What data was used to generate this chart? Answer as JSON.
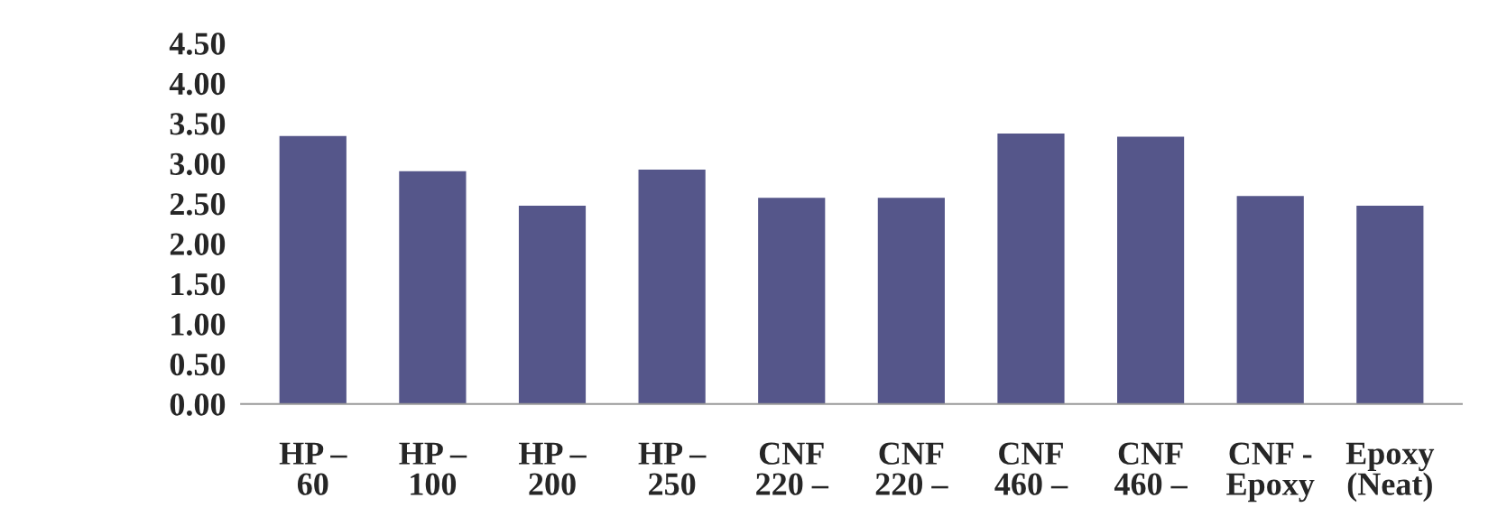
{
  "chart_data": {
    "type": "bar",
    "categories": [
      "HP –\n60",
      "HP –\n100",
      "HP –\n200",
      "HP –\n250",
      "CNF\n220 –",
      "CNF\n220 –",
      "CNF\n460 –",
      "CNF\n460 –",
      "CNF -\nEpoxy",
      "Epoxy\n(Neat)"
    ],
    "values": [
      3.35,
      2.91,
      2.48,
      2.93,
      2.58,
      2.58,
      3.38,
      3.34,
      2.6,
      2.48
    ],
    "color": "#55568a",
    "ylim": [
      0,
      4.5
    ],
    "yticks": [
      {
        "value": 0,
        "label": "0.00"
      },
      {
        "value": 0.5,
        "label": "0.50"
      },
      {
        "value": 1,
        "label": "1.00"
      },
      {
        "value": 1.5,
        "label": "1.50"
      },
      {
        "value": 2,
        "label": "2.00"
      },
      {
        "value": 2.5,
        "label": "2.50"
      },
      {
        "value": 3,
        "label": "3.00"
      },
      {
        "value": 3.5,
        "label": "3.50"
      },
      {
        "value": 4,
        "label": "4.00"
      },
      {
        "value": 4.5,
        "label": "4.50"
      }
    ],
    "grid": false,
    "legend": false
  }
}
